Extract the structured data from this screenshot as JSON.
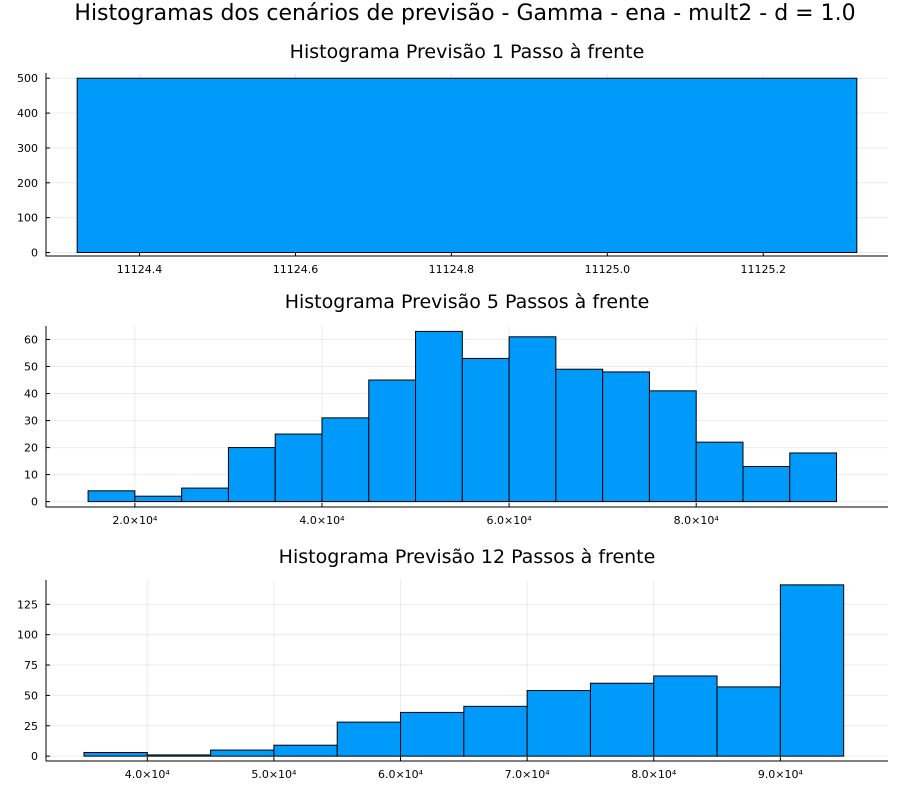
{
  "figure": {
    "title": "Histogramas dos cenários de previsão - Gamma - ena - mult2 - d = 1.0",
    "bar_color": "#009AFA"
  },
  "chart_data": [
    {
      "type": "bar",
      "title": "Histograma Previsão 1 Passo à frente",
      "xlabel": "",
      "ylabel": "",
      "bins": [
        [
          11124.32,
          11125.32
        ]
      ],
      "values": [
        500
      ],
      "xlim": [
        11124.28,
        11125.36
      ],
      "ylim": [
        -10,
        515
      ],
      "xticks": [
        {
          "v": 11124.4,
          "label": "11124.4"
        },
        {
          "v": 11124.6,
          "label": "11124.6"
        },
        {
          "v": 11124.8,
          "label": "11124.8"
        },
        {
          "v": 11125.0,
          "label": "11125.0"
        },
        {
          "v": 11125.2,
          "label": "11125.2"
        }
      ],
      "yticks": [
        0,
        100,
        200,
        300,
        400,
        500
      ],
      "grid": true
    },
    {
      "type": "bar",
      "title": "Histograma Previsão 5 Passos à frente",
      "xlabel": "",
      "ylabel": "",
      "bins": [
        [
          15000,
          20000
        ],
        [
          20000,
          25000
        ],
        [
          25000,
          30000
        ],
        [
          30000,
          35000
        ],
        [
          35000,
          40000
        ],
        [
          40000,
          45000
        ],
        [
          45000,
          50000
        ],
        [
          50000,
          55000
        ],
        [
          55000,
          60000
        ],
        [
          60000,
          65000
        ],
        [
          65000,
          70000
        ],
        [
          70000,
          75000
        ],
        [
          75000,
          80000
        ],
        [
          80000,
          85000
        ],
        [
          85000,
          90000
        ],
        [
          90000,
          95000
        ]
      ],
      "values": [
        4,
        2,
        5,
        20,
        25,
        31,
        45,
        63,
        53,
        61,
        49,
        48,
        41,
        22,
        13,
        18
      ],
      "xlim": [
        10500,
        100500
      ],
      "ylim": [
        -2,
        65
      ],
      "xticks": [
        {
          "v": 20000,
          "label": "2.0×10⁴"
        },
        {
          "v": 40000,
          "label": "4.0×10⁴"
        },
        {
          "v": 60000,
          "label": "6.0×10⁴"
        },
        {
          "v": 80000,
          "label": "8.0×10⁴"
        }
      ],
      "yticks": [
        0,
        10,
        20,
        30,
        40,
        50,
        60
      ],
      "grid": true
    },
    {
      "type": "bar",
      "title": "Histograma Previsão 12 Passos à frente",
      "xlabel": "",
      "ylabel": "",
      "bins": [
        [
          35000,
          40000
        ],
        [
          40000,
          45000
        ],
        [
          45000,
          50000
        ],
        [
          50000,
          55000
        ],
        [
          55000,
          60000
        ],
        [
          60000,
          65000
        ],
        [
          65000,
          70000
        ],
        [
          70000,
          75000
        ],
        [
          75000,
          80000
        ],
        [
          80000,
          85000
        ],
        [
          85000,
          90000
        ],
        [
          90000,
          95000
        ]
      ],
      "values": [
        3,
        1,
        5,
        9,
        28,
        36,
        41,
        54,
        60,
        66,
        57,
        141
      ],
      "xlim": [
        32000,
        98500
      ],
      "ylim": [
        -4,
        145
      ],
      "xticks": [
        {
          "v": 40000,
          "label": "4.0×10⁴"
        },
        {
          "v": 50000,
          "label": "5.0×10⁴"
        },
        {
          "v": 60000,
          "label": "6.0×10⁴"
        },
        {
          "v": 70000,
          "label": "7.0×10⁴"
        },
        {
          "v": 80000,
          "label": "8.0×10⁴"
        },
        {
          "v": 90000,
          "label": "9.0×10⁴"
        }
      ],
      "yticks": [
        0,
        25,
        50,
        75,
        100,
        125
      ],
      "grid": true
    }
  ]
}
